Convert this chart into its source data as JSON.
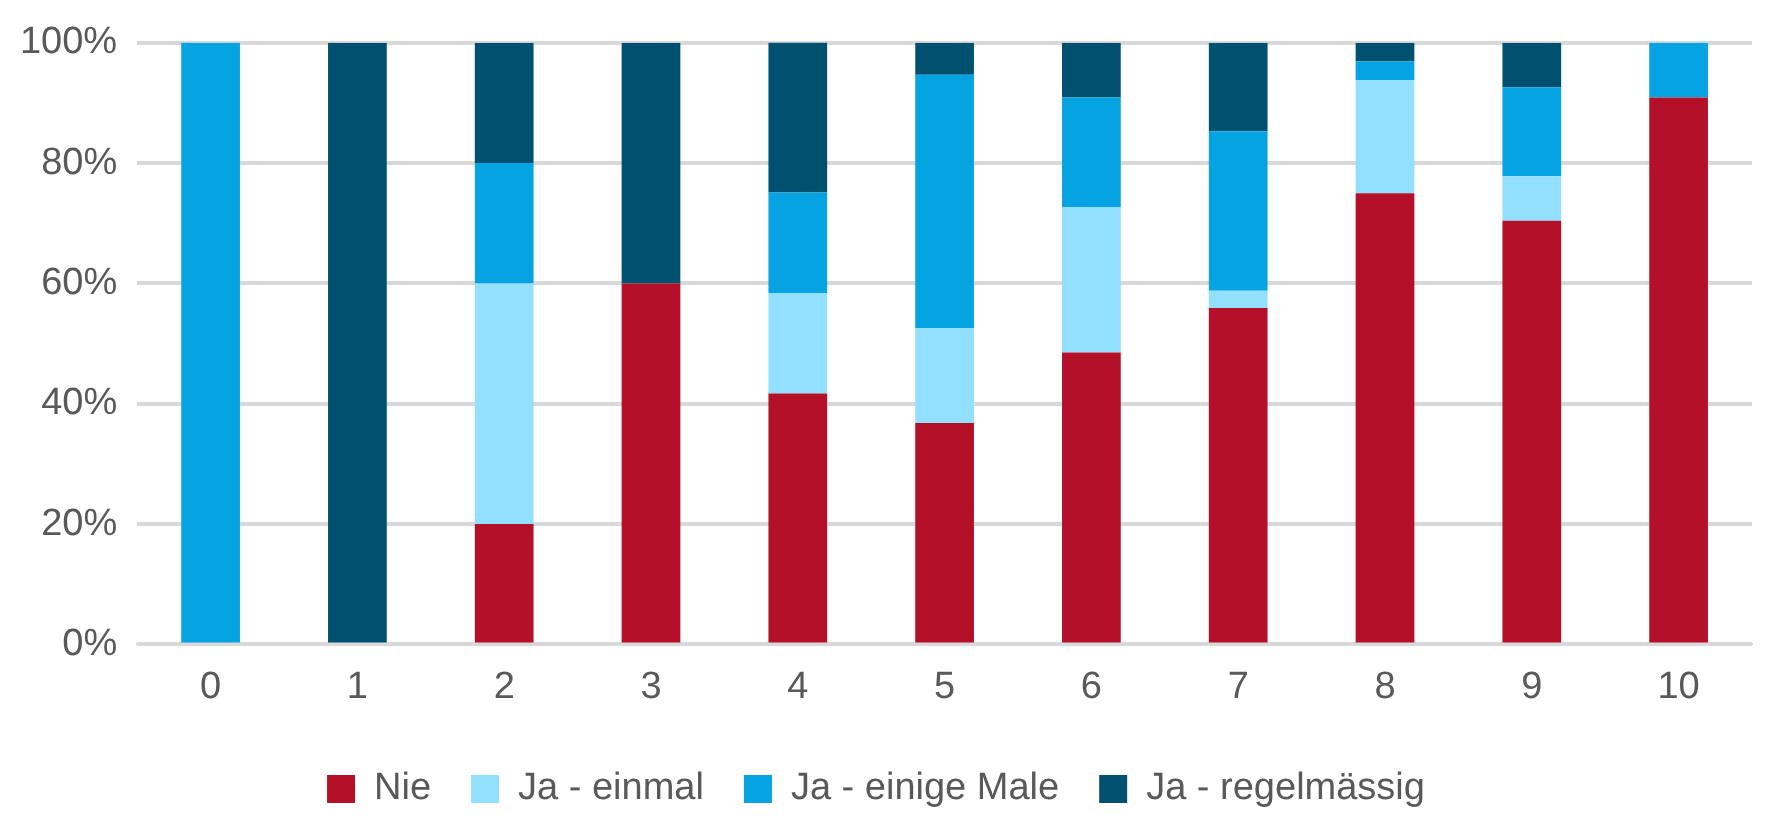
{
  "chart_data": {
    "type": "bar",
    "stacked": true,
    "categories": [
      "0",
      "1",
      "2",
      "3",
      "4",
      "5",
      "6",
      "7",
      "8",
      "9",
      "10"
    ],
    "series": [
      {
        "name": "Nie",
        "color": "#b5102a",
        "values": [
          0,
          0,
          20,
          60,
          41.7,
          36.8,
          48.5,
          55.9,
          75,
          70.4,
          90.9
        ]
      },
      {
        "name": "Ja - einmal",
        "color": "#93dfff",
        "values": [
          0,
          0,
          40,
          0,
          16.7,
          15.8,
          24.2,
          2.9,
          18.8,
          7.4,
          0
        ]
      },
      {
        "name": "Ja - einige Male",
        "color": "#05a3e2",
        "values": [
          100,
          0,
          20,
          0,
          16.7,
          42.1,
          18.2,
          26.5,
          3.1,
          14.8,
          9.1
        ]
      },
      {
        "name": "Ja - regelmässig",
        "color": "#005170",
        "values": [
          0,
          100,
          20,
          40,
          25,
          5.3,
          9.1,
          14.7,
          3.1,
          7.4,
          0
        ]
      }
    ],
    "ylim": [
      0,
      100
    ],
    "yticks": [
      {
        "value": 0,
        "label": "0%"
      },
      {
        "value": 20,
        "label": "20%"
      },
      {
        "value": 40,
        "label": "40%"
      },
      {
        "value": 60,
        "label": "60%"
      },
      {
        "value": 80,
        "label": "80%"
      },
      {
        "value": 100,
        "label": "100%"
      }
    ],
    "grid": "y",
    "legend": "bottom"
  }
}
